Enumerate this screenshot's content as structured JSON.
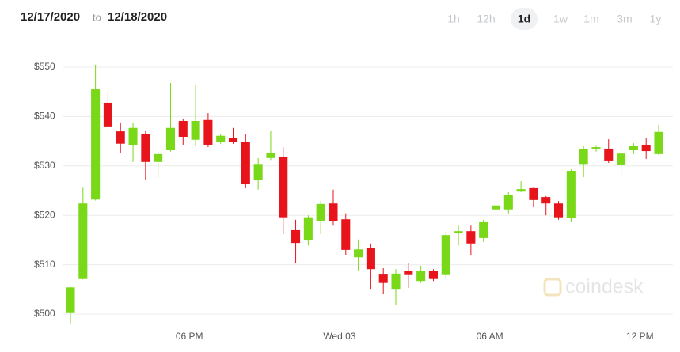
{
  "header": {
    "from": "12/17/2020",
    "to_word": "to",
    "to": "12/18/2020",
    "ranges": [
      "1h",
      "12h",
      "1d",
      "1w",
      "1m",
      "3m",
      "1y"
    ],
    "selected_range": 2
  },
  "watermark": "coindesk",
  "chart_data": {
    "type": "candlestick",
    "up_color": "#79d817",
    "down_color": "#e8141b",
    "grid": true,
    "open": [
      500.2,
      507.1,
      523.2,
      542.8,
      537.0,
      534.3,
      536.4,
      530.8,
      533.2,
      539.1,
      535.3,
      539.3,
      534.9,
      535.6,
      534.8,
      527.1,
      531.6,
      531.9,
      517.0,
      514.9,
      518.8,
      522.4,
      519.2,
      511.5,
      513.3,
      508.0,
      505.1,
      508.8,
      506.7,
      508.7,
      507.9,
      516.5,
      516.8,
      515.4,
      521.2,
      521.2,
      524.8,
      525.5,
      523.7,
      522.4,
      519.4,
      530.4,
      533.5,
      533.5,
      530.3,
      533.2,
      534.3,
      532.4
    ],
    "high": [
      505.5,
      525.6,
      550.5,
      545.2,
      538.8,
      538.8,
      537.2,
      532.9,
      546.8,
      539.6,
      546.3,
      540.7,
      536.4,
      537.7,
      536.4,
      531.6,
      537.2,
      533.8,
      519.1,
      520.0,
      522.9,
      525.2,
      520.4,
      515.1,
      514.3,
      509.3,
      509.1,
      510.3,
      509.8,
      509.1,
      516.7,
      517.9,
      517.9,
      519.1,
      522.6,
      524.7,
      526.9,
      525.6,
      523.9,
      522.9,
      529.3,
      534.0,
      534.2,
      535.4,
      534.0,
      534.6,
      535.7,
      538.3
    ],
    "low": [
      497.9,
      507.0,
      523.0,
      537.5,
      532.7,
      530.8,
      527.2,
      527.6,
      532.9,
      534.3,
      534.0,
      533.8,
      534.5,
      534.5,
      525.5,
      525.2,
      531.2,
      516.2,
      510.3,
      513.9,
      516.2,
      517.9,
      512.0,
      508.8,
      505.1,
      504.0,
      501.8,
      505.3,
      506.3,
      506.7,
      507.2,
      513.9,
      511.9,
      514.6,
      517.6,
      520.4,
      524.7,
      521.6,
      520.0,
      519.1,
      518.6,
      527.7,
      532.9,
      530.6,
      527.7,
      532.4,
      531.4,
      532.2
    ],
    "close": [
      505.4,
      522.4,
      545.5,
      538.0,
      534.5,
      537.7,
      530.8,
      532.4,
      537.7,
      535.9,
      539.1,
      534.3,
      536.1,
      534.8,
      526.4,
      530.4,
      532.7,
      519.6,
      514.4,
      519.6,
      522.3,
      518.8,
      513.0,
      513.1,
      509.1,
      506.3,
      508.2,
      507.9,
      508.7,
      507.1,
      516.0,
      516.8,
      514.3,
      518.6,
      522.0,
      524.2,
      525.3,
      523.1,
      522.4,
      519.6,
      529.0,
      533.5,
      533.8,
      531.1,
      532.5,
      534.0,
      533.0,
      536.9
    ],
    "xlim": [
      -0.5,
      47.5
    ],
    "xticks": [
      {
        "value": 9.5,
        "label": "06 PM"
      },
      {
        "value": 21.5,
        "label": "Wed 03"
      },
      {
        "value": 33.5,
        "label": "06 AM"
      },
      {
        "value": 45.5,
        "label": "12 PM"
      }
    ],
    "ylim": [
      497.5,
      552.5
    ],
    "yticks": [
      {
        "value": 500,
        "label": "$500"
      },
      {
        "value": 510,
        "label": "$510"
      },
      {
        "value": 520,
        "label": "$520"
      },
      {
        "value": 530,
        "label": "$530"
      },
      {
        "value": 540,
        "label": "$540"
      },
      {
        "value": 550,
        "label": "$550"
      }
    ]
  }
}
